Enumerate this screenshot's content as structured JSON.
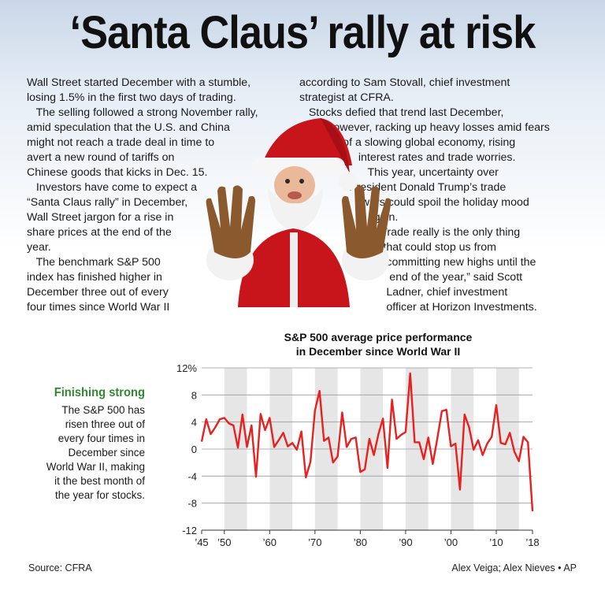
{
  "headline": "‘Santa Claus’ rally at risk",
  "story_left": [
    "Wall Street started December with a stumble,",
    "losing 1.5% in the first two days of trading.",
    "   The selling followed a strong November rally,",
    "amid speculation that the U.S. and China",
    "might not reach a trade deal in time to",
    "avert a new round of tariffs on",
    "Chinese goods that kicks in Dec. 15.",
    "   Investors have come to expect a",
    "“Santa Claus rally” in December,",
    "Wall Street jargon for a rise in",
    "share prices at the end of the",
    "year.",
    "   The benchmark S&P 500",
    "index has finished higher in",
    "December three out of every",
    "four times since World War II"
  ],
  "story_right": [
    "according to Sam Stovall, chief investment",
    "strategist at CFRA.",
    "   Stocks defied that trend last December,",
    "         however, racking up heavy losses amid fears",
    "              of a slowing global economy, rising",
    "                   interest rates and trade worries.",
    "                      This year, uncertainty over",
    "                President Donald Trump’s trade",
    "                    wars could spoil the holiday mood",
    "                      again.",
    "                         “Trade really is the only thing",
    "                           that could stop us from",
    "                            committing new highs until the",
    "                             end of the year,” said Scott",
    "                            Ladner, chief investment",
    "                            officer at Horizon Investments."
  ],
  "sidebar": {
    "heading": "Finishing strong",
    "body": [
      "The S&P 500 has",
      "risen three out of",
      "every four times in",
      "December since",
      "World War II, making",
      "it the best month of",
      "the year for stocks."
    ]
  },
  "footer": {
    "source": "Source: CFRA",
    "credit": "Alex Veiga; Alex Nieves • AP"
  },
  "colors": {
    "line": "#e8201f",
    "band": "#e6e6e6",
    "grid": "#9a9a9a",
    "accent": "#2f8a2f"
  },
  "chart_data": {
    "type": "line",
    "title": [
      "S&P 500 average price performance",
      "in December since World War II"
    ],
    "xlabel": "",
    "ylabel": "",
    "x_ticks": [
      "’45",
      "’50",
      "’60",
      "’70",
      "’80",
      "’90",
      "’00",
      "’10",
      "’18"
    ],
    "x_tick_years": [
      1945,
      1950,
      1960,
      1970,
      1980,
      1990,
      2000,
      2010,
      2018
    ],
    "y_ticks": [
      "12%",
      "8",
      "4",
      "0",
      "-4",
      "-8",
      "-12"
    ],
    "y_tick_values": [
      12,
      8,
      4,
      0,
      -4,
      -8,
      -12
    ],
    "ylim": [
      -12,
      12
    ],
    "xlim": [
      1945,
      2018
    ],
    "shaded_decades": [
      [
        1950,
        1955
      ],
      [
        1960,
        1965
      ],
      [
        1970,
        1975
      ],
      [
        1980,
        1985
      ],
      [
        1990,
        1995
      ],
      [
        2000,
        2005
      ],
      [
        2010,
        2015
      ]
    ],
    "grid": true,
    "series": [
      {
        "x": [
          1945,
          1946,
          1947,
          1948,
          1949,
          1950,
          1951,
          1952,
          1953,
          1954,
          1955,
          1956,
          1957,
          1958,
          1959,
          1960,
          1961,
          1962,
          1963,
          1964,
          1965,
          1966,
          1967,
          1968,
          1969,
          1970,
          1971,
          1972,
          1973,
          1974,
          1975,
          1976,
          1977,
          1978,
          1979,
          1980,
          1981,
          1982,
          1983,
          1984,
          1985,
          1986,
          1987,
          1988,
          1989,
          1990,
          1991,
          1992,
          1993,
          1994,
          1995,
          1996,
          1997,
          1998,
          1999,
          2000,
          2001,
          2002,
          2003,
          2004,
          2005,
          2006,
          2007,
          2008,
          2009,
          2010,
          2011,
          2012,
          2013,
          2014,
          2015,
          2016,
          2017,
          2018
        ],
        "values": [
          1.1,
          4.4,
          2.2,
          3.2,
          4.4,
          4.6,
          3.8,
          3.5,
          0.2,
          5.1,
          0.3,
          3.5,
          -4.1,
          5.2,
          2.8,
          4.6,
          0.3,
          1.3,
          2.4,
          0.4,
          0.9,
          -0.1,
          2.6,
          -4.2,
          -1.9,
          5.7,
          8.6,
          1.2,
          1.7,
          -2.0,
          -1.1,
          5.4,
          0.3,
          1.5,
          1.7,
          -3.4,
          -3.0,
          1.5,
          -0.9,
          2.2,
          4.5,
          -2.8,
          7.3,
          1.5,
          2.1,
          2.5,
          11.2,
          1.0,
          1.0,
          -1.5,
          1.7,
          -2.2,
          1.6,
          5.6,
          5.8,
          0.4,
          0.8,
          -6.0,
          5.1,
          3.2,
          -0.1,
          1.3,
          -0.9,
          0.8,
          1.8,
          6.5,
          0.9,
          0.7,
          2.4,
          -0.4,
          -1.8,
          1.8,
          1.0,
          -9.2
        ]
      }
    ]
  }
}
